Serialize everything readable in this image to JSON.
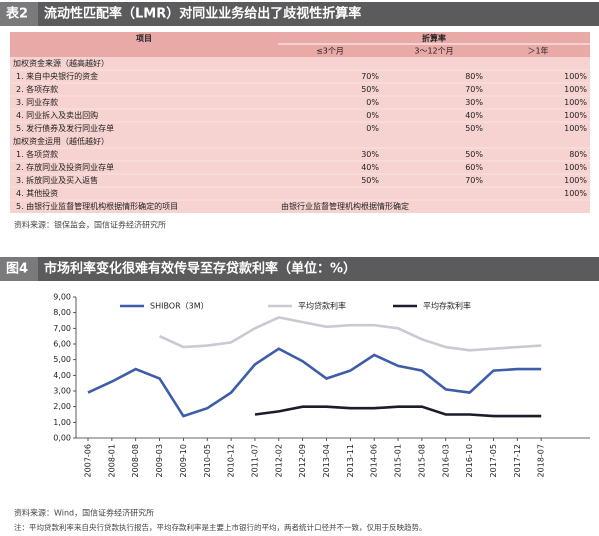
{
  "table_section": {
    "label": "表2",
    "title": "流动性匹配率（LMR）对同业业务给出了歧视性折算率",
    "header": {
      "item": "项目",
      "rate": "折算率",
      "periods": [
        "≤3个月",
        "3～12个月",
        "＞1年"
      ]
    },
    "groups": [
      {
        "title": "加权资金来源（越高越好）",
        "rows": [
          {
            "label": "1. 来自中央银行的资金",
            "rates": [
              "70%",
              "80%",
              "100%"
            ]
          },
          {
            "label": "2. 各项存款",
            "rates": [
              "50%",
              "70%",
              "100%"
            ]
          },
          {
            "label": "3. 同业存款",
            "rates": [
              "0%",
              "30%",
              "100%"
            ]
          },
          {
            "label": "4. 同业拆入及卖出回购",
            "rates": [
              "0%",
              "40%",
              "100%"
            ]
          },
          {
            "label": "5. 发行债券及发行同业存单",
            "rates": [
              "0%",
              "50%",
              "100%"
            ]
          }
        ]
      },
      {
        "title": "加权资金运用（越低越好）",
        "rows": [
          {
            "label": "1. 各项贷款",
            "rates": [
              "30%",
              "50%",
              "80%"
            ]
          },
          {
            "label": "2. 存放同业及投资同业存单",
            "rates": [
              "40%",
              "60%",
              "100%"
            ]
          },
          {
            "label": "3. 拆放同业及买入返售",
            "rates": [
              "50%",
              "70%",
              "100%"
            ]
          },
          {
            "label": "4. 其他投资",
            "rates": [
              null,
              null,
              "100%"
            ]
          },
          {
            "label": "5. 由银行业监督管理机构根据情形确定的项目",
            "note": "由银行业监督管理机构根据情形确定"
          }
        ]
      }
    ],
    "source": "资料来源：银保监会，国信证券经济研究所"
  },
  "chart_data": {
    "type": "line",
    "label": "图4",
    "title": "市场利率变化很难有效传导至存贷款利率（单位：%）",
    "categories": [
      "2007-06",
      "2008-01",
      "2008-08",
      "2009-03",
      "2009-10",
      "2010-05",
      "2010-12",
      "2011-07",
      "2012-02",
      "2012-09",
      "2013-04",
      "2013-11",
      "2014-06",
      "2015-01",
      "2015-08",
      "2016-03",
      "2016-10",
      "2017-05",
      "2017-12",
      "2018-07"
    ],
    "series": [
      {
        "name": "SHIBOR（3M）",
        "color": "#3d5da8",
        "values": [
          2.9,
          3.6,
          4.4,
          3.8,
          1.4,
          1.9,
          2.9,
          4.7,
          5.7,
          4.9,
          3.8,
          4.3,
          5.3,
          4.6,
          4.3,
          3.1,
          2.9,
          4.3,
          4.4,
          4.4
        ]
      },
      {
        "name": "平均贷款利率",
        "color": "#c9cad3",
        "values": [
          null,
          null,
          null,
          6.5,
          5.8,
          5.9,
          6.1,
          7.0,
          7.7,
          7.4,
          7.1,
          7.2,
          7.2,
          7.0,
          6.3,
          5.8,
          5.6,
          5.7,
          5.8,
          5.9
        ]
      },
      {
        "name": "平均存款利率",
        "color": "#1b1c2c",
        "values": [
          null,
          null,
          null,
          null,
          null,
          null,
          null,
          1.5,
          1.7,
          2.0,
          2.0,
          1.9,
          1.9,
          2.0,
          2.0,
          1.5,
          1.5,
          1.4,
          1.4,
          1.4
        ]
      }
    ],
    "ylim": [
      0,
      9
    ],
    "yticks": [
      {
        "value": 0,
        "label": "0,00"
      },
      {
        "value": 1,
        "label": "1,00"
      },
      {
        "value": 2,
        "label": "2,00"
      },
      {
        "value": 3,
        "label": "3,00"
      },
      {
        "value": 4,
        "label": "4,00"
      },
      {
        "value": 5,
        "label": "5,00"
      },
      {
        "value": 6,
        "label": "6,00"
      },
      {
        "value": 7,
        "label": "7,00"
      },
      {
        "value": 8,
        "label": "8,00"
      },
      {
        "value": 9,
        "label": "9,00"
      }
    ],
    "grid": false,
    "source": "资料来源：Wind，国信证券经济研究所",
    "note": "注：平均贷款利率来自央行贷款执行报告，平均存款利率是主要上市银行的平均，两者统计口径并不一致，仅用于反映趋势。"
  }
}
